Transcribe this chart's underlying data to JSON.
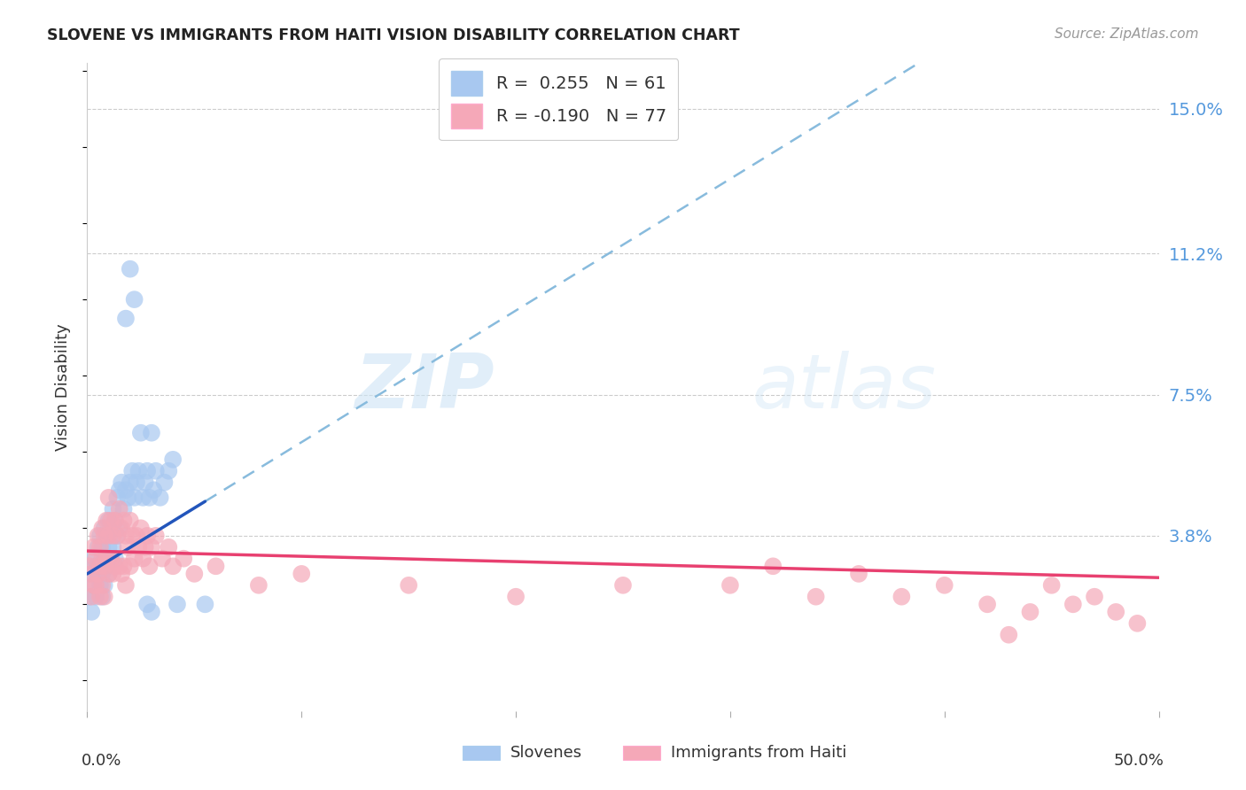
{
  "title": "SLOVENE VS IMMIGRANTS FROM HAITI VISION DISABILITY CORRELATION CHART",
  "source": "Source: ZipAtlas.com",
  "ylabel": "Vision Disability",
  "ytick_values": [
    0.038,
    0.075,
    0.112,
    0.15
  ],
  "ytick_labels": [
    "3.8%",
    "7.5%",
    "11.2%",
    "15.0%"
  ],
  "xlim": [
    0.0,
    0.5
  ],
  "ylim": [
    -0.008,
    0.162
  ],
  "watermark_zip": "ZIP",
  "watermark_atlas": "atlas",
  "slovene_color": "#a8c8f0",
  "haiti_color": "#f5a8b8",
  "trend_slovene_solid": "#2255bb",
  "trend_slovene_dash": "#88bbdd",
  "trend_haiti_color": "#e84070",
  "grid_color": "#cccccc",
  "background_color": "#ffffff",
  "slovene_points": [
    [
      0.001,
      0.022
    ],
    [
      0.002,
      0.028
    ],
    [
      0.002,
      0.018
    ],
    [
      0.003,
      0.032
    ],
    [
      0.003,
      0.025
    ],
    [
      0.004,
      0.03
    ],
    [
      0.004,
      0.022
    ],
    [
      0.005,
      0.035
    ],
    [
      0.005,
      0.028
    ],
    [
      0.006,
      0.038
    ],
    [
      0.006,
      0.03
    ],
    [
      0.006,
      0.025
    ],
    [
      0.007,
      0.035
    ],
    [
      0.007,
      0.028
    ],
    [
      0.007,
      0.022
    ],
    [
      0.008,
      0.04
    ],
    [
      0.008,
      0.032
    ],
    [
      0.008,
      0.025
    ],
    [
      0.009,
      0.038
    ],
    [
      0.009,
      0.03
    ],
    [
      0.01,
      0.042
    ],
    [
      0.01,
      0.035
    ],
    [
      0.01,
      0.028
    ],
    [
      0.011,
      0.04
    ],
    [
      0.011,
      0.032
    ],
    [
      0.012,
      0.045
    ],
    [
      0.012,
      0.035
    ],
    [
      0.013,
      0.042
    ],
    [
      0.013,
      0.032
    ],
    [
      0.014,
      0.048
    ],
    [
      0.014,
      0.038
    ],
    [
      0.015,
      0.05
    ],
    [
      0.015,
      0.04
    ],
    [
      0.016,
      0.052
    ],
    [
      0.017,
      0.045
    ],
    [
      0.018,
      0.095
    ],
    [
      0.018,
      0.05
    ],
    [
      0.019,
      0.048
    ],
    [
      0.02,
      0.108
    ],
    [
      0.02,
      0.052
    ],
    [
      0.021,
      0.055
    ],
    [
      0.022,
      0.1
    ],
    [
      0.022,
      0.048
    ],
    [
      0.023,
      0.052
    ],
    [
      0.024,
      0.055
    ],
    [
      0.025,
      0.065
    ],
    [
      0.026,
      0.048
    ],
    [
      0.027,
      0.052
    ],
    [
      0.028,
      0.055
    ],
    [
      0.028,
      0.02
    ],
    [
      0.029,
      0.048
    ],
    [
      0.03,
      0.065
    ],
    [
      0.03,
      0.018
    ],
    [
      0.031,
      0.05
    ],
    [
      0.032,
      0.055
    ],
    [
      0.034,
      0.048
    ],
    [
      0.036,
      0.052
    ],
    [
      0.038,
      0.055
    ],
    [
      0.04,
      0.058
    ],
    [
      0.042,
      0.02
    ],
    [
      0.055,
      0.02
    ]
  ],
  "haiti_points": [
    [
      0.001,
      0.03
    ],
    [
      0.002,
      0.028
    ],
    [
      0.002,
      0.022
    ],
    [
      0.003,
      0.035
    ],
    [
      0.003,
      0.025
    ],
    [
      0.004,
      0.032
    ],
    [
      0.004,
      0.025
    ],
    [
      0.005,
      0.038
    ],
    [
      0.005,
      0.028
    ],
    [
      0.006,
      0.035
    ],
    [
      0.006,
      0.03
    ],
    [
      0.006,
      0.022
    ],
    [
      0.007,
      0.04
    ],
    [
      0.007,
      0.032
    ],
    [
      0.007,
      0.025
    ],
    [
      0.008,
      0.038
    ],
    [
      0.008,
      0.03
    ],
    [
      0.008,
      0.022
    ],
    [
      0.009,
      0.042
    ],
    [
      0.009,
      0.032
    ],
    [
      0.01,
      0.048
    ],
    [
      0.01,
      0.038
    ],
    [
      0.01,
      0.028
    ],
    [
      0.011,
      0.042
    ],
    [
      0.011,
      0.032
    ],
    [
      0.012,
      0.038
    ],
    [
      0.012,
      0.028
    ],
    [
      0.013,
      0.042
    ],
    [
      0.013,
      0.03
    ],
    [
      0.014,
      0.038
    ],
    [
      0.015,
      0.045
    ],
    [
      0.015,
      0.03
    ],
    [
      0.016,
      0.04
    ],
    [
      0.016,
      0.028
    ],
    [
      0.017,
      0.042
    ],
    [
      0.017,
      0.03
    ],
    [
      0.018,
      0.038
    ],
    [
      0.018,
      0.025
    ],
    [
      0.019,
      0.035
    ],
    [
      0.02,
      0.042
    ],
    [
      0.02,
      0.03
    ],
    [
      0.021,
      0.038
    ],
    [
      0.022,
      0.032
    ],
    [
      0.023,
      0.038
    ],
    [
      0.024,
      0.035
    ],
    [
      0.025,
      0.04
    ],
    [
      0.026,
      0.032
    ],
    [
      0.027,
      0.035
    ],
    [
      0.028,
      0.038
    ],
    [
      0.029,
      0.03
    ],
    [
      0.03,
      0.035
    ],
    [
      0.032,
      0.038
    ],
    [
      0.035,
      0.032
    ],
    [
      0.038,
      0.035
    ],
    [
      0.04,
      0.03
    ],
    [
      0.045,
      0.032
    ],
    [
      0.05,
      0.028
    ],
    [
      0.06,
      0.03
    ],
    [
      0.08,
      0.025
    ],
    [
      0.1,
      0.028
    ],
    [
      0.15,
      0.025
    ],
    [
      0.2,
      0.022
    ],
    [
      0.25,
      0.025
    ],
    [
      0.3,
      0.025
    ],
    [
      0.32,
      0.03
    ],
    [
      0.34,
      0.022
    ],
    [
      0.36,
      0.028
    ],
    [
      0.38,
      0.022
    ],
    [
      0.4,
      0.025
    ],
    [
      0.42,
      0.02
    ],
    [
      0.44,
      0.018
    ],
    [
      0.45,
      0.025
    ],
    [
      0.46,
      0.02
    ],
    [
      0.47,
      0.022
    ],
    [
      0.48,
      0.018
    ],
    [
      0.49,
      0.015
    ],
    [
      0.43,
      0.012
    ]
  ],
  "trend_slovene_x0": 0.0,
  "trend_slovene_y0": 0.028,
  "trend_slovene_x1": 0.055,
  "trend_slovene_y1": 0.047,
  "trend_haiti_x0": 0.0,
  "trend_haiti_y0": 0.034,
  "trend_haiti_x1": 0.5,
  "trend_haiti_y1": 0.027
}
